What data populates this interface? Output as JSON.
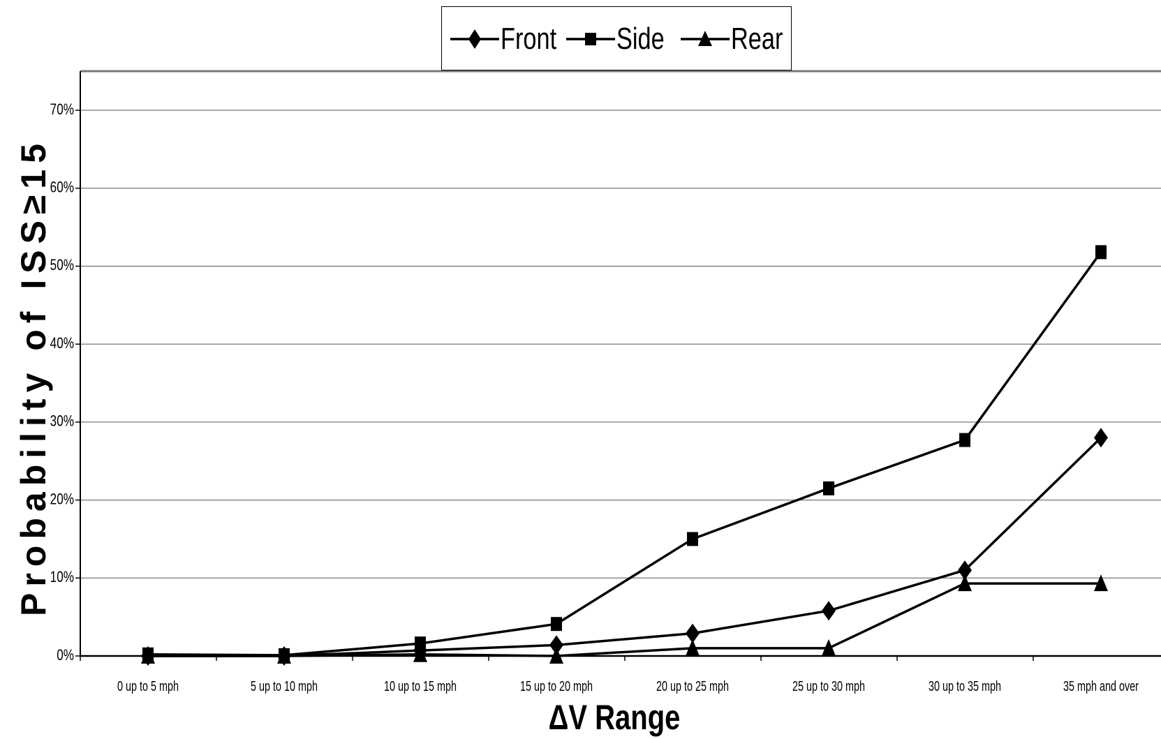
{
  "chart_data": {
    "type": "line",
    "title": "",
    "xlabel": "ΔV Range",
    "ylabel": "Probability of ISS≥15",
    "categories": [
      "0 up to 5 mph",
      "5 up to 10 mph",
      "10 up to 15 mph",
      "15 up to 20 mph",
      "20 up to 25 mph",
      "25 up to 30 mph",
      "30 up to 35 mph",
      "35 mph and over"
    ],
    "y_ticks": [
      "0%",
      "10%",
      "20%",
      "30%",
      "40%",
      "50%",
      "60%",
      "70%"
    ],
    "ylim": [
      0,
      0.75
    ],
    "grid": true,
    "legend_position": "top-center",
    "series": [
      {
        "name": "Front",
        "marker": "diamond",
        "values": [
          0.0,
          0.0,
          0.007,
          0.014,
          0.029,
          0.058,
          0.11,
          0.28
        ]
      },
      {
        "name": "Side",
        "marker": "square",
        "values": [
          0.002,
          0.001,
          0.016,
          0.041,
          0.15,
          0.215,
          0.277,
          0.518
        ]
      },
      {
        "name": "Rear",
        "marker": "triangle",
        "values": [
          0.0,
          0.0,
          0.002,
          0.0,
          0.01,
          0.01,
          0.093,
          0.093
        ]
      }
    ],
    "colors": {
      "line": "#000000",
      "grid": "#555555",
      "background": "#ffffff"
    }
  }
}
